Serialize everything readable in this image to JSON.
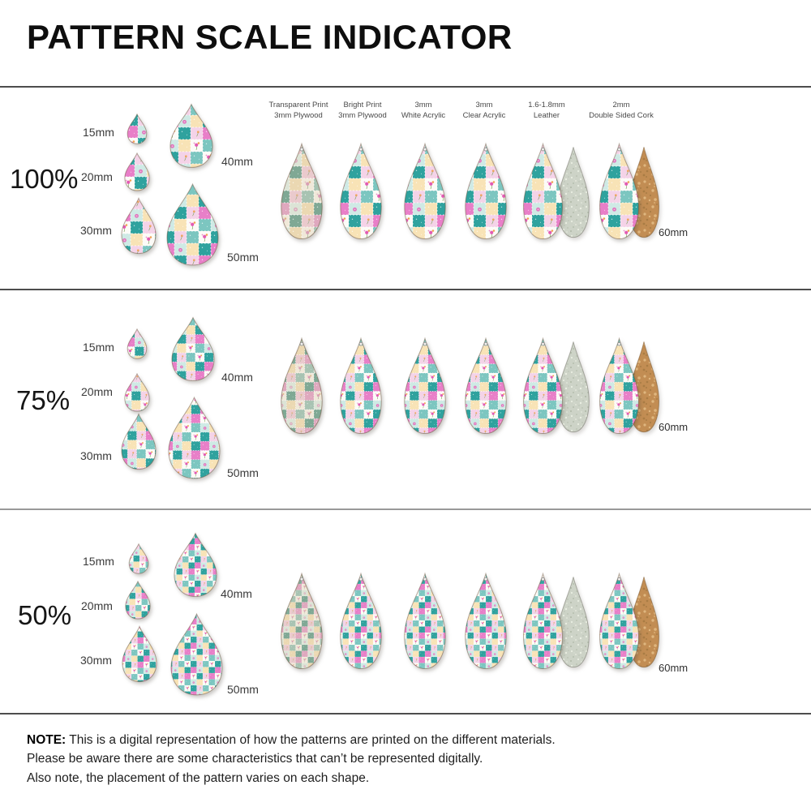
{
  "title": "PATTERN SCALE INDICATOR",
  "material_columns": [
    {
      "line1": "Transparent Print",
      "line2": "3mm Plywood"
    },
    {
      "line1": "Bright Print",
      "line2": "3mm Plywood"
    },
    {
      "line1": "3mm",
      "line2": "White Acrylic"
    },
    {
      "line1": "3mm",
      "line2": "Clear Acrylic"
    },
    {
      "line1": "1.6-1.8mm",
      "line2": "Leather"
    },
    {
      "line1": "2mm",
      "line2": "Double Sided Cork"
    }
  ],
  "sections": [
    {
      "scale_label": "100%",
      "sizes": [
        "15mm",
        "20mm",
        "30mm",
        "40mm",
        "50mm"
      ],
      "sample_size_label": "60mm"
    },
    {
      "scale_label": "75%",
      "sizes": [
        "15mm",
        "20mm",
        "30mm",
        "40mm",
        "50mm"
      ],
      "sample_size_label": "60mm"
    },
    {
      "scale_label": "50%",
      "sizes": [
        "15mm",
        "20mm",
        "30mm",
        "40mm",
        "50mm"
      ],
      "sample_size_label": "60mm"
    }
  ],
  "note": {
    "label": "NOTE:",
    "lines": [
      "This is a digital representation of how the patterns are printed on the different materials.",
      "Please be aware there are some characteristics that can’t be represented digitally.",
      "Also note, the placement of the pattern varies on each shape."
    ]
  },
  "palette": {
    "bright": {
      "squares": {
        "t": "#2FA29E",
        "T": "#7CC6C0",
        "m": "#CFEAE5",
        "p": "#F4D3E8",
        "k": "#E87FC8",
        "y": "#F8E3B6",
        "w": "#FCFBF7"
      },
      "rose": "#E35BB4",
      "orange": "#F0A04E",
      "stem": "#7BA35C"
    },
    "muted": {
      "squares": {
        "t": "#7FA894",
        "T": "#A8C3B2",
        "m": "#DCE4D6",
        "p": "#EACACD",
        "k": "#DFA8BE",
        "y": "#EBD8B2",
        "w": "#F0E8D9"
      },
      "rose": "#D99FB4",
      "orange": "#DDB384",
      "stem": "#9AAE8A"
    },
    "leather_back": {
      "base": "#CDD3C7",
      "speckle_light": "#EAEEE2",
      "speckle_dark": "#AFB8A6"
    },
    "cork_back": {
      "base": "#C28D53",
      "speckle_light": "#DFB67E",
      "speckle_dark": "#A97C44"
    }
  },
  "pattern_grid": [
    "t",
    "p",
    "T",
    "w",
    "k",
    "m",
    "y",
    "t",
    "w",
    "t",
    "p",
    "k",
    "m",
    "y",
    "w",
    "T"
  ]
}
